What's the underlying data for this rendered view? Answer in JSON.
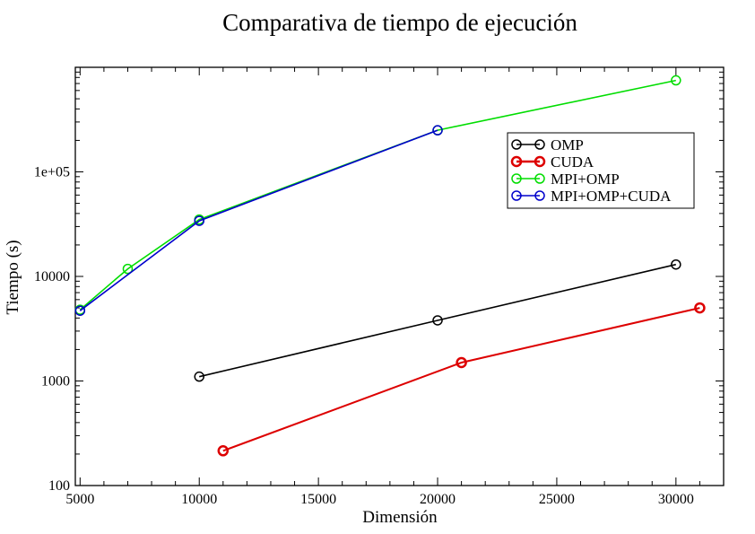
{
  "chart_data": {
    "type": "line",
    "title": "Comparativa de tiempo de ejecución",
    "xlabel": "Dimensión",
    "ylabel": "Tiempo (s)",
    "xlim": [
      4800,
      32000
    ],
    "ylim": [
      100,
      1000000
    ],
    "yscale": "log",
    "x_ticks": [
      5000,
      10000,
      15000,
      20000,
      25000,
      30000
    ],
    "x_tick_labels": [
      "5000",
      "10000",
      "15000",
      "20000",
      "25000",
      "30000"
    ],
    "y_ticks": [
      100,
      1000,
      10000,
      100000
    ],
    "y_tick_labels": [
      "100",
      "1000",
      "10000",
      "1e+05"
    ],
    "grid": false,
    "legend_position": "upper-right",
    "series": [
      {
        "name": "OMP",
        "color": "#000000",
        "x": [
          10000,
          20000,
          30000
        ],
        "y": [
          1100,
          3800,
          13000
        ]
      },
      {
        "name": "CUDA",
        "color": "#dd0000",
        "x": [
          11000,
          21000,
          31000
        ],
        "y": [
          215,
          1500,
          5000
        ]
      },
      {
        "name": "MPI+OMP",
        "color": "#00dd00",
        "x": [
          5000,
          7000,
          10000,
          20000,
          30000
        ],
        "y": [
          4800,
          11800,
          35000,
          250000,
          750000
        ]
      },
      {
        "name": "MPI+OMP+CUDA",
        "color": "#0000cc",
        "x": [
          5000,
          10000,
          20000
        ],
        "y": [
          4700,
          34000,
          250000
        ]
      }
    ]
  }
}
